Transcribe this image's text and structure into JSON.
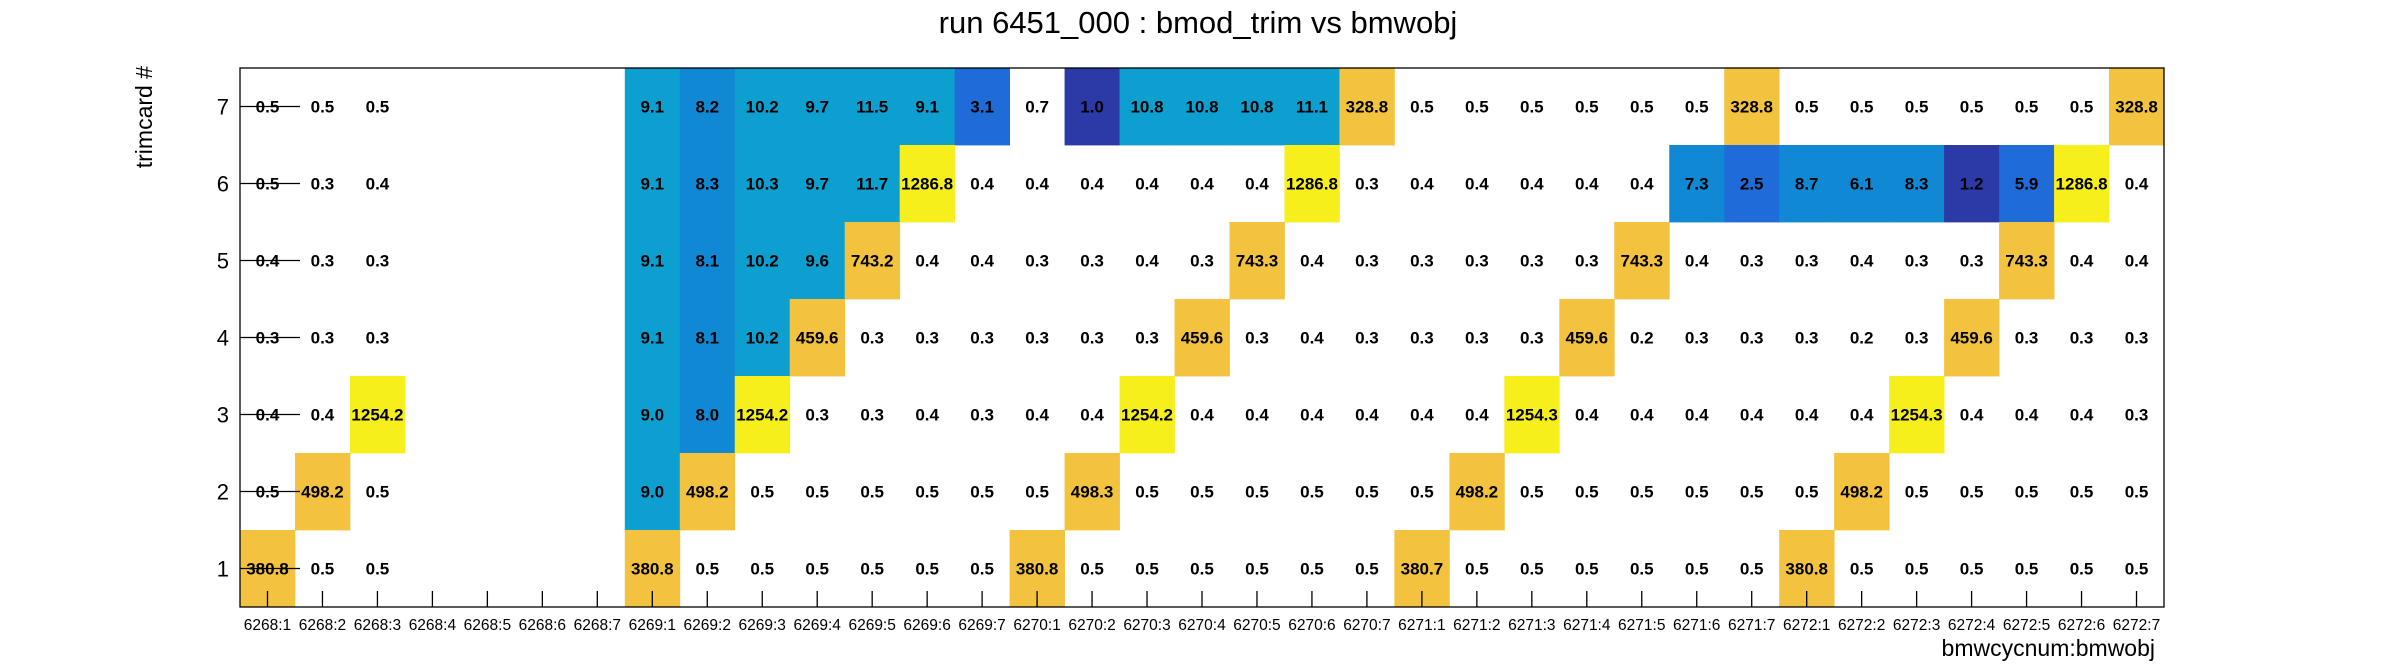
{
  "chart_data": {
    "type": "heatmap",
    "title": "run 6451_000 : bmod_trim vs bmwobj",
    "xlabel": "bmwcycnum:bmwobj",
    "ylabel": "trimcard #",
    "x_categories": [
      "6268:1",
      "6268:2",
      "6268:3",
      "6268:4",
      "6268:5",
      "6268:6",
      "6268:7",
      "6269:1",
      "6269:2",
      "6269:3",
      "6269:4",
      "6269:5",
      "6269:6",
      "6269:7",
      "6270:1",
      "6270:2",
      "6270:3",
      "6270:4",
      "6270:5",
      "6270:6",
      "6270:7",
      "6271:1",
      "6271:2",
      "6271:3",
      "6271:4",
      "6271:5",
      "6271:6",
      "6271:7",
      "6272:1",
      "6272:2",
      "6272:3",
      "6272:4",
      "6272:5",
      "6272:6",
      "6272:7"
    ],
    "y_categories": [
      "1",
      "2",
      "3",
      "4",
      "5",
      "6",
      "7"
    ],
    "rows": [
      {
        "y": "7",
        "values": [
          "0.5",
          "0.5",
          "0.5",
          "",
          "",
          "",
          "",
          "9.1",
          "8.2",
          "10.2",
          "9.7",
          "11.5",
          "9.1",
          "3.1",
          "0.7",
          "1.0",
          "10.8",
          "10.8",
          "10.8",
          "11.1",
          "328.8",
          "0.5",
          "0.5",
          "0.5",
          "0.5",
          "0.5",
          "0.5",
          "328.8",
          "0.5",
          "0.5",
          "0.5",
          "0.5",
          "0.5",
          "0.5",
          "328.8"
        ]
      },
      {
        "y": "6",
        "values": [
          "0.5",
          "0.3",
          "0.4",
          "",
          "",
          "",
          "",
          "9.1",
          "8.3",
          "10.3",
          "9.7",
          "11.7",
          "1286.8",
          "0.4",
          "0.4",
          "0.4",
          "0.4",
          "0.4",
          "0.4",
          "1286.8",
          "0.3",
          "0.4",
          "0.4",
          "0.4",
          "0.4",
          "0.4",
          "7.3",
          "2.5",
          "8.7",
          "6.1",
          "8.3",
          "1.2",
          "5.9",
          "1286.8",
          "0.4"
        ]
      },
      {
        "y": "5",
        "values": [
          "0.4",
          "0.3",
          "0.3",
          "",
          "",
          "",
          "",
          "9.1",
          "8.1",
          "10.2",
          "9.6",
          "743.2",
          "0.4",
          "0.4",
          "0.3",
          "0.3",
          "0.4",
          "0.3",
          "743.3",
          "0.4",
          "0.3",
          "0.3",
          "0.3",
          "0.3",
          "0.3",
          "743.3",
          "0.4",
          "0.3",
          "0.3",
          "0.4",
          "0.3",
          "0.3",
          "743.3",
          "0.4",
          "0.4"
        ]
      },
      {
        "y": "4",
        "values": [
          "0.3",
          "0.3",
          "0.3",
          "",
          "",
          "",
          "",
          "9.1",
          "8.1",
          "10.2",
          "459.6",
          "0.3",
          "0.3",
          "0.3",
          "0.3",
          "0.3",
          "0.3",
          "459.6",
          "0.3",
          "0.4",
          "0.3",
          "0.3",
          "0.3",
          "0.3",
          "459.6",
          "0.2",
          "0.3",
          "0.3",
          "0.3",
          "0.2",
          "0.3",
          "459.6",
          "0.3",
          "0.3",
          "0.3"
        ]
      },
      {
        "y": "3",
        "values": [
          "0.4",
          "0.4",
          "1254.2",
          "",
          "",
          "",
          "",
          "9.0",
          "8.0",
          "1254.2",
          "0.3",
          "0.3",
          "0.4",
          "0.3",
          "0.4",
          "0.4",
          "1254.2",
          "0.4",
          "0.4",
          "0.4",
          "0.4",
          "0.4",
          "0.4",
          "1254.3",
          "0.4",
          "0.4",
          "0.4",
          "0.4",
          "0.4",
          "0.4",
          "1254.3",
          "0.4",
          "0.4",
          "0.4",
          "0.3"
        ]
      },
      {
        "y": "2",
        "values": [
          "0.5",
          "498.2",
          "0.5",
          "",
          "",
          "",
          "",
          "9.0",
          "498.2",
          "0.5",
          "0.5",
          "0.5",
          "0.5",
          "0.5",
          "0.5",
          "498.3",
          "0.5",
          "0.5",
          "0.5",
          "0.5",
          "0.5",
          "0.5",
          "498.2",
          "0.5",
          "0.5",
          "0.5",
          "0.5",
          "0.5",
          "0.5",
          "498.2",
          "0.5",
          "0.5",
          "0.5",
          "0.5",
          "0.5"
        ]
      },
      {
        "y": "1",
        "values": [
          "380.8",
          "0.5",
          "0.5",
          "",
          "",
          "",
          "",
          "380.8",
          "0.5",
          "0.5",
          "0.5",
          "0.5",
          "0.5",
          "0.5",
          "380.8",
          "0.5",
          "0.5",
          "0.5",
          "0.5",
          "0.5",
          "0.5",
          "380.7",
          "0.5",
          "0.5",
          "0.5",
          "0.5",
          "0.5",
          "0.5",
          "380.8",
          "0.5",
          "0.5",
          "0.5",
          "0.5",
          "0.5",
          "0.5"
        ]
      }
    ],
    "palette": {
      "orange": "#f3c33f",
      "yellow": "#f7ef1c",
      "sky": "#0c9fd0",
      "blue_mid": "#1188d3",
      "blue_deep": "#1f6bd8",
      "navy": "#2b3aa6"
    },
    "grid": false,
    "legend": "none"
  }
}
